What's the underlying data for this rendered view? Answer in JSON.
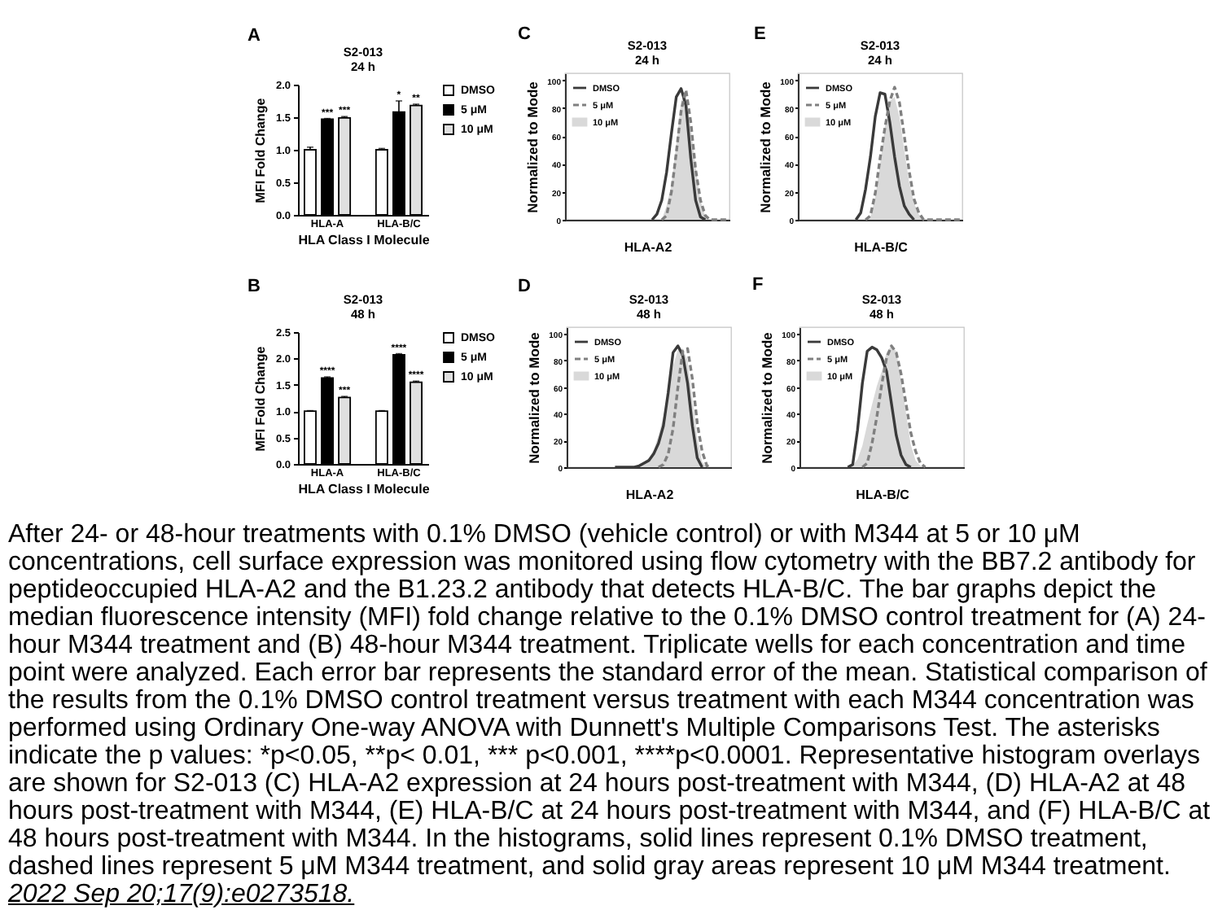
{
  "chart_data": [
    {
      "type": "bar",
      "title": "S2-013",
      "subtitle": "24 h",
      "xlabel": "HLA Class I Molecule",
      "ylabel": "MFI Fold Change",
      "categories": [
        "HLA-A",
        "HLA-B/C"
      ],
      "series": [
        {
          "name": "DMSO",
          "color": "#ffffff",
          "values": [
            1.0,
            1.0
          ],
          "errors": [
            0.04,
            0.02
          ]
        },
        {
          "name": "5 μM",
          "color": "#000000",
          "values": [
            1.47,
            1.58
          ],
          "errors": [
            0.01,
            0.17
          ],
          "value_labels": [
            "***",
            "*"
          ]
        },
        {
          "name": "10 μM",
          "color": "#e0e0e0",
          "values": [
            1.49,
            1.68
          ],
          "errors": [
            0.02,
            0.02
          ],
          "value_labels": [
            "***",
            "**"
          ]
        }
      ],
      "ylim": [
        0,
        2
      ],
      "yticks": [
        {
          "value": 0,
          "label": "0.0"
        },
        0.5,
        {
          "value": 1,
          "label": "1.0"
        },
        1.5,
        {
          "value": 2,
          "label": "2.0"
        }
      ],
      "legend": "right",
      "annotations": [
        "A"
      ]
    },
    {
      "type": "line",
      "title": "S2-013",
      "subtitle": "24 h",
      "xlabel": "HLA-A2",
      "ylabel": "Normalized to Mode",
      "categories": [
        null,
        null,
        null,
        null,
        null,
        null,
        null,
        null,
        null,
        null,
        null,
        null,
        null,
        null,
        null,
        null,
        null,
        null,
        null,
        null,
        null,
        null,
        null,
        null,
        null,
        null,
        null,
        null,
        null,
        null,
        null,
        null,
        null,
        null,
        null
      ],
      "series": [
        {
          "name": "DMSO",
          "color": "#3a3a3a",
          "values": [
            null,
            null,
            null,
            null,
            null,
            null,
            null,
            null,
            null,
            null,
            null,
            null,
            null,
            null,
            null,
            null,
            null,
            null,
            0,
            4,
            14,
            34,
            62,
            88,
            94,
            82,
            44,
            14,
            2,
            0,
            null,
            null,
            null,
            null,
            null
          ]
        },
        {
          "name": "5 μM",
          "color": "#808080",
          "line_style": "dashed",
          "values": [
            null,
            null,
            null,
            null,
            null,
            null,
            null,
            null,
            null,
            null,
            null,
            null,
            null,
            null,
            null,
            null,
            null,
            null,
            null,
            null,
            0,
            3,
            20,
            48,
            78,
            93,
            70,
            36,
            14,
            3,
            0,
            0,
            0,
            0,
            0
          ]
        },
        {
          "name": "10 μM",
          "type": "area",
          "color": "#d9d9d9",
          "values": [
            null,
            null,
            null,
            null,
            null,
            null,
            null,
            null,
            null,
            null,
            null,
            null,
            null,
            null,
            null,
            null,
            null,
            null,
            null,
            null,
            0,
            10,
            25,
            54,
            85,
            90,
            66,
            38,
            14,
            2,
            0,
            null,
            null,
            null,
            null
          ]
        }
      ],
      "ylim": [
        0,
        105
      ],
      "yticks": [
        0,
        20,
        40,
        60,
        80,
        100
      ],
      "legend": "top left",
      "annotations": [
        "C"
      ]
    },
    {
      "type": "line",
      "title": "S2-013",
      "subtitle": "24 h",
      "xlabel": "HLA-B/C",
      "ylabel": "Normalized to Mode",
      "categories": [
        null,
        null,
        null,
        null,
        null,
        null,
        null,
        null,
        null,
        null,
        null,
        null,
        null,
        null,
        null,
        null,
        null,
        null,
        null,
        null,
        null,
        null,
        null,
        null,
        null,
        null,
        null,
        null,
        null,
        null,
        null,
        null,
        null,
        null,
        null
      ],
      "series": [
        {
          "name": "DMSO",
          "color": "#3a3a3a",
          "values": [
            null,
            null,
            null,
            null,
            null,
            null,
            null,
            null,
            null,
            null,
            null,
            null,
            0,
            5,
            22,
            45,
            74,
            91,
            90,
            70,
            45,
            24,
            10,
            4,
            0,
            null,
            null,
            null,
            null,
            null,
            null,
            null,
            null,
            null,
            null
          ]
        },
        {
          "name": "5 μM",
          "color": "#808080",
          "line_style": "dashed",
          "values": [
            null,
            null,
            null,
            null,
            null,
            null,
            null,
            null,
            null,
            null,
            null,
            null,
            null,
            null,
            0,
            3,
            19,
            44,
            66,
            85,
            95,
            84,
            60,
            35,
            15,
            5,
            0,
            0,
            0,
            0,
            0,
            0,
            0,
            0,
            0
          ]
        },
        {
          "name": "10 μM",
          "type": "area",
          "color": "#d9d9d9",
          "values": [
            null,
            null,
            null,
            null,
            null,
            null,
            null,
            null,
            null,
            null,
            null,
            null,
            null,
            null,
            0,
            2,
            16,
            40,
            67,
            85,
            88,
            74,
            50,
            27,
            12,
            4,
            0,
            null,
            null,
            null,
            null,
            null,
            null,
            null,
            null
          ]
        }
      ],
      "ylim": [
        0,
        105
      ],
      "yticks": [
        0,
        20,
        40,
        60,
        80,
        100
      ],
      "legend": "top left",
      "annotations": [
        "E"
      ]
    },
    {
      "type": "bar",
      "title": "S2-013",
      "subtitle": "48 h",
      "xlabel": "HLA Class I Molecule",
      "ylabel": "MFI Fold Change",
      "categories": [
        "HLA-A",
        "HLA-B/C"
      ],
      "series": [
        {
          "name": "DMSO",
          "color": "#ffffff",
          "values": [
            1.0,
            1.0
          ],
          "errors": [
            0.01,
            0.01
          ]
        },
        {
          "name": "5 μM",
          "color": "#000000",
          "values": [
            1.63,
            2.07
          ],
          "errors": [
            0.02,
            0.02
          ],
          "value_labels": [
            "****",
            "****"
          ]
        },
        {
          "name": "10 μM",
          "color": "#e0e0e0",
          "values": [
            1.26,
            1.55
          ],
          "errors": [
            0.02,
            0.02
          ],
          "value_labels": [
            "***",
            "****"
          ]
        }
      ],
      "ylim": [
        0,
        2.5
      ],
      "yticks": [
        {
          "value": 0,
          "label": "0.0"
        },
        0.5,
        {
          "value": 1,
          "label": "1.0"
        },
        1.5,
        {
          "value": 2,
          "label": "2.0"
        },
        2.5
      ],
      "legend": "right",
      "annotations": [
        "B"
      ]
    },
    {
      "type": "line",
      "title": "S2-013",
      "subtitle": "48 h",
      "xlabel": "HLA-A2",
      "ylabel": "Normalized to Mode",
      "categories": [
        null,
        null,
        null,
        null,
        null,
        null,
        null,
        null,
        null,
        null,
        null,
        null,
        null,
        null,
        null,
        null,
        null,
        null,
        null,
        null,
        null,
        null,
        null,
        null,
        null,
        null,
        null,
        null,
        null,
        null,
        null,
        null,
        null,
        null,
        null
      ],
      "series": [
        {
          "name": "DMSO",
          "color": "#3a3a3a",
          "values": [
            null,
            null,
            null,
            null,
            null,
            null,
            null,
            null,
            null,
            null,
            0,
            0,
            0,
            0,
            0,
            1,
            3,
            5,
            10,
            18,
            31,
            56,
            86,
            91,
            84,
            63,
            31,
            7,
            0,
            null,
            null,
            null,
            null,
            null,
            null
          ]
        },
        {
          "name": "5 μM",
          "color": "#808080",
          "line_style": "dashed",
          "values": [
            null,
            null,
            null,
            null,
            null,
            null,
            null,
            null,
            null,
            null,
            null,
            null,
            null,
            null,
            null,
            null,
            null,
            null,
            null,
            0,
            2,
            10,
            29,
            60,
            87,
            89,
            66,
            33,
            12,
            1,
            0,
            null,
            null,
            null,
            null
          ]
        },
        {
          "name": "10 μM",
          "type": "area",
          "color": "#d9d9d9",
          "values": [
            null,
            null,
            null,
            null,
            null,
            null,
            null,
            null,
            null,
            null,
            null,
            null,
            null,
            null,
            0,
            1,
            4,
            7,
            13,
            24,
            38,
            55,
            76,
            88,
            89,
            80,
            51,
            22,
            4,
            0,
            null,
            null,
            null,
            null,
            null
          ]
        }
      ],
      "ylim": [
        0,
        105
      ],
      "yticks": [
        0,
        20,
        40,
        60,
        80,
        100
      ],
      "legend": "top left",
      "annotations": [
        "D"
      ]
    },
    {
      "type": "line",
      "title": "S2-013",
      "subtitle": "48 h",
      "xlabel": "HLA-B/C",
      "ylabel": "Normalized to Mode",
      "categories": [
        null,
        null,
        null,
        null,
        null,
        null,
        null,
        null,
        null,
        null,
        null,
        null,
        null,
        null,
        null,
        null,
        null,
        null,
        null,
        null,
        null,
        null,
        null,
        null,
        null,
        null,
        null,
        null,
        null,
        null,
        null,
        null,
        null,
        null,
        null
      ],
      "series": [
        {
          "name": "DMSO",
          "color": "#3a3a3a",
          "values": [
            null,
            null,
            null,
            null,
            null,
            null,
            null,
            null,
            null,
            null,
            0,
            2,
            28,
            63,
            87,
            90,
            88,
            82,
            72,
            48,
            24,
            9,
            2,
            0,
            null,
            null,
            null,
            null,
            null,
            null,
            null,
            null,
            null,
            null,
            null
          ]
        },
        {
          "name": "5 μM",
          "color": "#808080",
          "line_style": "dashed",
          "values": [
            null,
            null,
            null,
            null,
            null,
            null,
            null,
            null,
            null,
            null,
            null,
            null,
            null,
            0,
            3,
            18,
            38,
            62,
            82,
            91,
            86,
            70,
            48,
            26,
            12,
            3,
            0,
            null,
            null,
            null,
            null,
            null,
            null,
            null,
            null
          ]
        },
        {
          "name": "10 μM",
          "type": "area",
          "color": "#d9d9d9",
          "values": [
            null,
            null,
            null,
            null,
            null,
            null,
            null,
            null,
            null,
            null,
            0,
            1,
            6,
            16,
            32,
            47,
            61,
            72,
            86,
            91,
            87,
            66,
            41,
            17,
            5,
            1,
            0,
            null,
            null,
            null,
            null,
            null,
            null,
            null,
            null
          ]
        }
      ],
      "ylim": [
        0,
        105
      ],
      "yticks": [
        0,
        20,
        40,
        60,
        80,
        100
      ],
      "legend": "top left",
      "annotations": [
        "F",
        "After 24- or 48-hour treatments with 0.1% DMSO (vehicle control) or with M344 at 5 or 10 μM concentrations, cell surface expression was monitored using flow cytometry with the BB7.2 antibody for peptideoccupied HLA-A2 and the B1.23.2 antibody that detects HLA-B/C. The bar graphs depict the median fluorescence intensity (MFI) fold change relative to the 0.1% DMSO control treatment for (A) 24-hour M344 treatment and (B) 48-hour M344 treatment. Triplicate wells for each concentration and time point were analyzed. Each error bar represents the standard error of the mean. Statistical comparison of the results from the 0.1% DMSO control treatment versus treatment with each M344 concentration was performed using Ordinary One-way ANOVA with Dunnett's Multiple Comparisons Test. The asterisks indicate the p values: *p<0.05, **p< 0.01, *** p<0.001, ****p<0.0001. Representative histogram overlays are shown for S2-013 (C) HLA-A2 expression at 24 hours post-treatment with M344, (D) HLA-A2 at 48 hours post-treatment with M344, (E) HLA-B/C at 24 hours post-treatment with M344, and (F) HLA-B/C at 48 hours post-treatment with M344. In the histograms, solid lines represent 0.1% DMSO treatment, dashed lines represent 5 μM M344 treatment, and solid gray areas represent 10 μM M344 treatment.",
        "2022 Sep 20;17(9):e0273518."
      ]
    }
  ]
}
